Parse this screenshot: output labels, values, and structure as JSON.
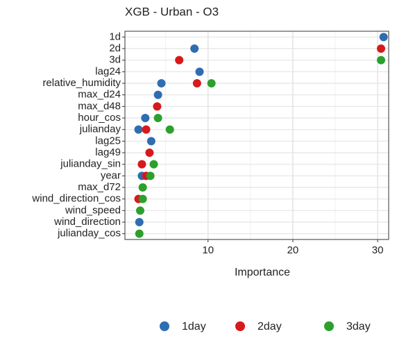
{
  "chart_data": {
    "type": "dot",
    "title": "XGB - Urban - O3",
    "x_label": "Importance",
    "categories": [
      "1d",
      "2d",
      "3d",
      "lag24",
      "relative_humidity",
      "max_d24",
      "max_d48",
      "hour_cos",
      "julianday",
      "lag25",
      "lag49",
      "julianday_sin",
      "year",
      "max_d72",
      "wind_direction_cos",
      "wind_speed",
      "wind_direction",
      "julianday_cos"
    ],
    "series": [
      {
        "name": "1day",
        "color": "#2f6db3",
        "values": [
          30.7,
          8.4,
          null,
          9.0,
          4.5,
          4.1,
          null,
          2.6,
          1.8,
          3.3,
          null,
          null,
          2.2,
          null,
          null,
          null,
          1.9,
          null
        ]
      },
      {
        "name": "2day",
        "color": "#d7191c",
        "values": [
          null,
          30.4,
          6.6,
          null,
          8.7,
          null,
          4.0,
          null,
          2.7,
          null,
          3.1,
          2.2,
          2.7,
          null,
          1.8,
          null,
          null,
          null
        ]
      },
      {
        "name": "3day",
        "color": "#2ca02c",
        "values": [
          null,
          null,
          30.4,
          null,
          10.4,
          null,
          null,
          4.1,
          5.5,
          null,
          null,
          3.6,
          3.2,
          2.3,
          2.3,
          2.0,
          null,
          1.9
        ]
      }
    ],
    "xlim": [
      0.2,
      31.3
    ],
    "xticks": [
      10,
      20,
      30
    ],
    "minor_xticks": [
      5,
      15,
      25
    ],
    "grid": true,
    "legend": "bottom"
  }
}
